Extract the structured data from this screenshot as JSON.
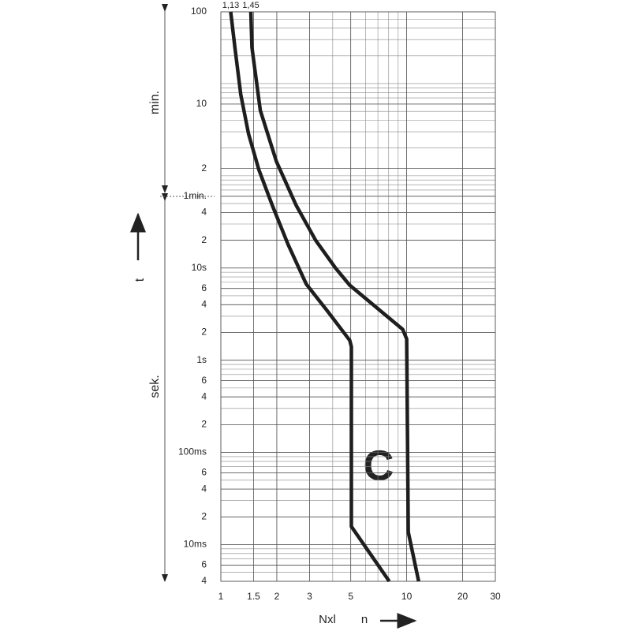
{
  "chart_data": {
    "type": "line",
    "annotation": "C",
    "xlabel": "Nxl",
    "xlabel2": "n",
    "ylabel": "t",
    "ylabel_upper": "min.",
    "ylabel_lower": "sek.",
    "log_x": true,
    "log_y": true,
    "grid": true,
    "xlim": [
      1,
      30
    ],
    "xticks": [
      1,
      1.5,
      2,
      3,
      5,
      10,
      20,
      30
    ],
    "ylim": [
      0.004,
      6000
    ],
    "yticks": [
      {
        "value": 6000,
        "label": "100"
      },
      {
        "value": 600,
        "label": "10"
      },
      {
        "value": 120,
        "label": "2"
      },
      {
        "value": 60,
        "label": "1min."
      },
      {
        "value": 40,
        "label": "4"
      },
      {
        "value": 20,
        "label": "2"
      },
      {
        "value": 10,
        "label": "10s"
      },
      6,
      4,
      2,
      {
        "value": 1,
        "label": "1s"
      },
      {
        "value": 0.6,
        "label": "6"
      },
      {
        "value": 0.4,
        "label": "4"
      },
      {
        "value": 0.2,
        "label": "2"
      },
      {
        "value": 0.1,
        "label": "100ms"
      },
      {
        "value": 0.06,
        "label": "6"
      },
      {
        "value": 0.04,
        "label": "4"
      },
      {
        "value": 0.02,
        "label": "2"
      },
      {
        "value": 0.01,
        "label": "10ms"
      },
      {
        "value": 0.006,
        "label": "6"
      },
      {
        "value": 0.004,
        "label": "4"
      }
    ],
    "series": [
      {
        "name": "1,13",
        "color": "#1e1e1e",
        "x": [
          1.13,
          1.19,
          1.28,
          1.41,
          1.6,
          1.89,
          2.3,
          2.88,
          3.75,
          4.94,
          5.04,
          5.04,
          8.06
        ],
        "values": [
          6000,
          2470,
          760,
          284,
          117,
          48,
          18,
          6.7,
          3.4,
          1.64,
          1.4,
          0.0157,
          0.004
        ]
      },
      {
        "name": "1,45",
        "color": "#1e1e1e",
        "x": [
          1.45,
          1.47,
          1.63,
          1.99,
          2.54,
          3.24,
          4.14,
          4.94,
          9.52,
          10,
          10.2,
          11.6
        ],
        "values": [
          6000,
          2470,
          513,
          143,
          48,
          19.9,
          10,
          6.5,
          2.16,
          1.7,
          0.0137,
          0.004
        ]
      }
    ]
  }
}
